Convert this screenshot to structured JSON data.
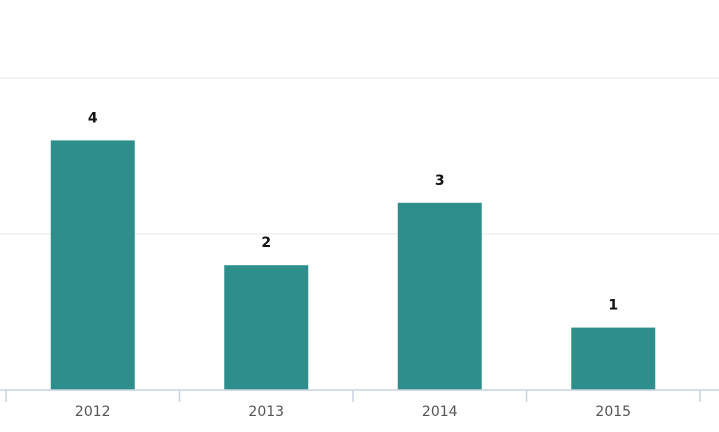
{
  "chart_data": {
    "type": "bar",
    "categories": [
      "2012",
      "2013",
      "2014",
      "2015"
    ],
    "values": [
      4,
      2,
      3,
      1
    ],
    "color": "#2e8e8b",
    "ylim": [
      0,
      5
    ],
    "yticks": [
      0,
      2.5,
      5
    ],
    "grid": true
  }
}
